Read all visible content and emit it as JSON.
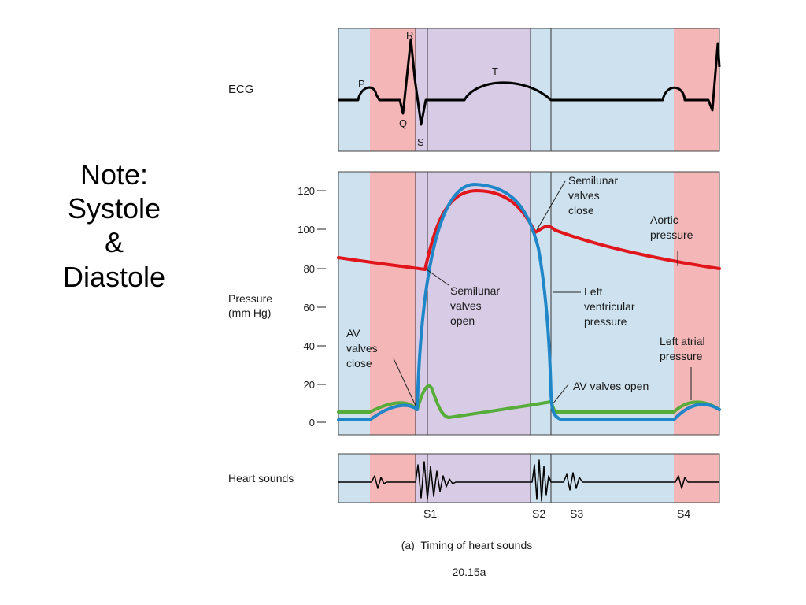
{
  "note": {
    "lines": [
      "Note:",
      "Systole",
      "&",
      "Diastole"
    ]
  },
  "figure": {
    "colors": {
      "atrial": "#f4b6b6",
      "ventricular_systole": "#d8cbe5",
      "diastole": "#cde2ee",
      "aortic_pressure": "#e0161c",
      "ventricular_pressure": "#1f86c8",
      "atrial_pressure": "#56ad3a",
      "trace": "#000000"
    },
    "ecg": {
      "label": "ECG",
      "waves": {
        "p": "P",
        "q": "Q",
        "r": "R",
        "s": "S",
        "t": "T"
      }
    },
    "pressure": {
      "label_line1": "Pressure",
      "label_line2": "(mm Hg)",
      "ticks": [
        "120",
        "100",
        "80",
        "60",
        "40",
        "20",
        "0"
      ],
      "annotations": {
        "semilunar_close": [
          "Semilunar",
          "valves",
          "close"
        ],
        "aortic": [
          "Aortic",
          "pressure"
        ],
        "semilunar_open": [
          "Semilunar",
          "valves",
          "open"
        ],
        "left_ventricular": [
          "Left",
          "ventricular",
          "pressure"
        ],
        "av_close": [
          "AV",
          "valves",
          "close"
        ],
        "left_atrial": [
          "Left atrial",
          "pressure"
        ],
        "av_open": "AV valves open"
      }
    },
    "heart_sounds": {
      "label": "Heart sounds",
      "s1": "S1",
      "s2": "S2",
      "s3": "S3",
      "s4": "S4"
    },
    "caption": "(a)  Timing of heart sounds",
    "figure_number": "20.15a"
  }
}
